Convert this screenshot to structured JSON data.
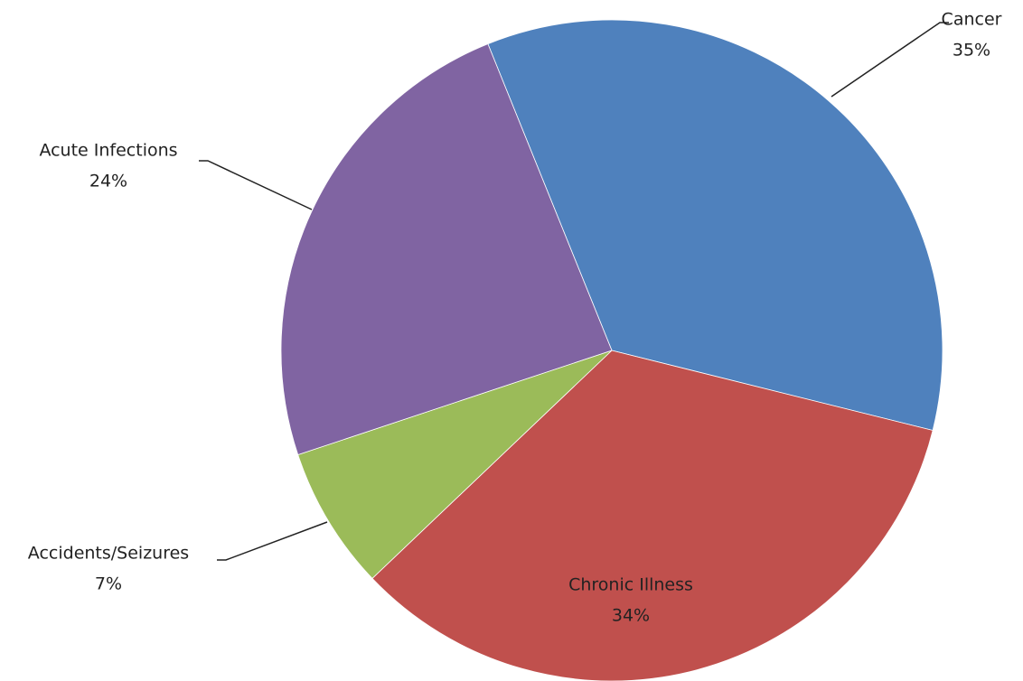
{
  "chart_data": {
    "type": "pie",
    "categories": [
      "Cancer",
      "Chronic Illness",
      "Accidents/Seizures",
      "Acute Infections"
    ],
    "values": [
      35,
      34,
      7,
      24
    ],
    "value_labels": [
      "35%",
      "34%",
      "7%",
      "24%"
    ],
    "colors": [
      "#4f81bd",
      "#c0504d",
      "#9bbb59",
      "#8064a2"
    ]
  }
}
